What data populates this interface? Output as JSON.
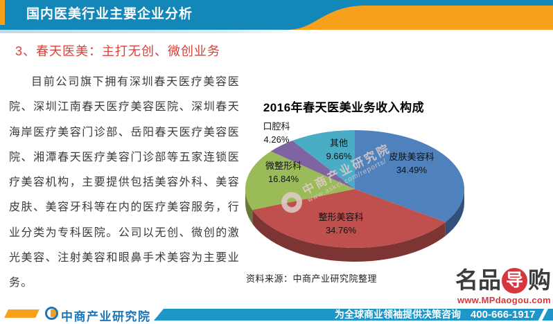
{
  "header": {
    "title": "国内医美行业主要企业分析"
  },
  "section": {
    "heading": "3、春天医美：主打无创、微创业务"
  },
  "body": {
    "paragraph": "目前公司旗下拥有深圳春天医疗美容医院、深圳江南春天医疗美容医院、深圳春天海岸医疗美容门诊部、岳阳春天医疗美容医院、湘潭春天医疗美容门诊部等五家连锁医疗美容机构，主要提供包括美容外科、美容皮肤、美容牙科等在内的医疗美容服务，行业分类为专科医院。公司以无创、微创的激光美容、注射美容和眼鼻手术美容为主要业务。"
  },
  "chart": {
    "title": "2016年春天医美业务收入构成",
    "source": "资料来源：中商产业研究院整理",
    "watermark_line1": "中商产业研究院",
    "watermark_line2": "www.askci.com/reports/"
  },
  "chart_data": {
    "type": "pie",
    "title": "2016年春天医美业务收入构成",
    "labels": [
      "皮肤美容科",
      "整形美容科",
      "微整形科",
      "口腔科",
      "其他"
    ],
    "values": [
      34.49,
      34.76,
      16.84,
      4.26,
      9.66
    ],
    "value_labels": [
      "34.49%",
      "34.76%",
      "16.84%",
      "4.26%",
      "9.66%"
    ],
    "colors": [
      "#4f81bd",
      "#c0504d",
      "#9bbb59",
      "#8064a2",
      "#4bacc6"
    ],
    "side_colors": [
      "#31517c",
      "#7c3532",
      "#66793a",
      "#53416b",
      "#2f7081"
    ],
    "start_angle_deg": 0,
    "direction": "clockwise",
    "effect": "3d",
    "legend": "none"
  },
  "footer": {
    "brand": "中商产业研究院",
    "tagline": "为全球商业领袖提供决策咨询",
    "phone": "400-666-1917"
  },
  "promo": {
    "logo_part1": "名品",
    "logo_mid": "导",
    "logo_part2": "购",
    "url": "www.MPdaogou.com"
  },
  "colors": {
    "header_teal": "#1287b8",
    "accent_orange": "#f8a01b",
    "heading_red": "#d9403a",
    "footer_bar_blue": "#1f96c8",
    "brand_blue": "#1a75bb",
    "promo_red": "#d6373f"
  }
}
